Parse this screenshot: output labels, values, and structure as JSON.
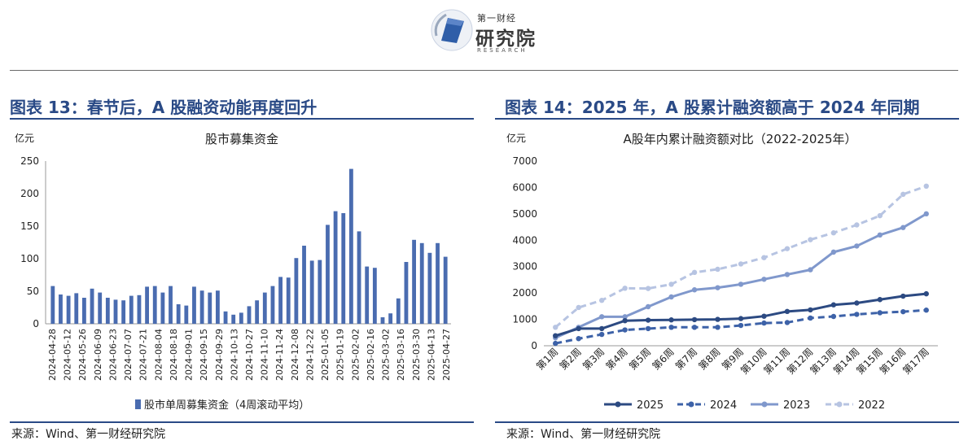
{
  "logo": {
    "small": "第一财经",
    "big": "研究院",
    "en": "RESEARCH"
  },
  "left": {
    "title": "图表 13：春节后，A 股融资动能再度回升",
    "source": "来源：Wind、第一财经研究院"
  },
  "right": {
    "title": "图表 14：2025 年，A 股累计融资额高于 2024 年同期",
    "source": "来源：Wind、第一财经研究院"
  },
  "chart_data": [
    {
      "type": "bar",
      "title": "股市募集资金",
      "unit_label": "亿元",
      "ylim": [
        0,
        250
      ],
      "yticks": [
        0,
        50,
        100,
        150,
        200,
        250
      ],
      "grid": false,
      "legend_position": "bottom",
      "x_tick_labels": [
        "2024-04-28",
        "2024-05-12",
        "2024-05-26",
        "2024-06-09",
        "2024-06-23",
        "2024-07-07",
        "2024-07-21",
        "2024-08-04",
        "2024-08-18",
        "2024-09-01",
        "2024-09-15",
        "2024-09-29",
        "2024-10-13",
        "2024-10-27",
        "2024-11-10",
        "2024-11-24",
        "2024-12-08",
        "2024-12-22",
        "2025-01-05",
        "2025-01-19",
        "2025-02-02",
        "2025-02-16",
        "2025-03-02",
        "2025-03-16",
        "2025-03-30",
        "2025-04-13",
        "2025-04-27"
      ],
      "series": [
        {
          "name": "股市单周募集资金（4周滚动平均）",
          "color": "#4a6cb0",
          "values": [
            58,
            45,
            43,
            47,
            40,
            54,
            48,
            40,
            37,
            36,
            43,
            44,
            57,
            58,
            48,
            58,
            30,
            28,
            57,
            51,
            48,
            51,
            19,
            14,
            17,
            27,
            36,
            48,
            58,
            72,
            71,
            101,
            120,
            97,
            98,
            152,
            173,
            170,
            238,
            142,
            88,
            86,
            10,
            16,
            39,
            95,
            129,
            124,
            109,
            124,
            103
          ]
        }
      ]
    },
    {
      "type": "line",
      "title": "A股年内累计融资额对比（2022-2025年）",
      "unit_label": "亿元",
      "categories": [
        "第1周",
        "第2周",
        "第3周",
        "第4周",
        "第5周",
        "第6周",
        "第7周",
        "第8周",
        "第9周",
        "第10周",
        "第11周",
        "第12周",
        "第13周",
        "第14周",
        "第15周",
        "第16周",
        "第17周"
      ],
      "ylim": [
        0,
        7000
      ],
      "yticks": [
        0,
        1000,
        2000,
        3000,
        4000,
        5000,
        6000,
        7000
      ],
      "grid": false,
      "legend_position": "bottom",
      "series": [
        {
          "name": "2025",
          "color": "#2c4a82",
          "dash": "solid",
          "values": [
            380,
            650,
            650,
            950,
            970,
            980,
            990,
            1000,
            1030,
            1120,
            1300,
            1360,
            1550,
            1620,
            1750,
            1880,
            1970
          ]
        },
        {
          "name": "2024",
          "color": "#3d62a8",
          "dash": "dashed",
          "values": [
            90,
            270,
            430,
            600,
            650,
            700,
            700,
            700,
            770,
            860,
            880,
            1050,
            1110,
            1190,
            1250,
            1290,
            1350
          ]
        },
        {
          "name": "2023",
          "color": "#8098cc",
          "dash": "solid",
          "values": [
            300,
            700,
            1100,
            1100,
            1480,
            1850,
            2120,
            2200,
            2330,
            2520,
            2700,
            2880,
            3550,
            3780,
            4200,
            4480,
            5000
          ]
        },
        {
          "name": "2022",
          "color": "#b7c4e2",
          "dash": "dashed",
          "values": [
            700,
            1450,
            1720,
            2180,
            2170,
            2330,
            2780,
            2900,
            3100,
            3340,
            3680,
            4020,
            4280,
            4580,
            4930,
            5740,
            6050
          ]
        }
      ]
    }
  ]
}
